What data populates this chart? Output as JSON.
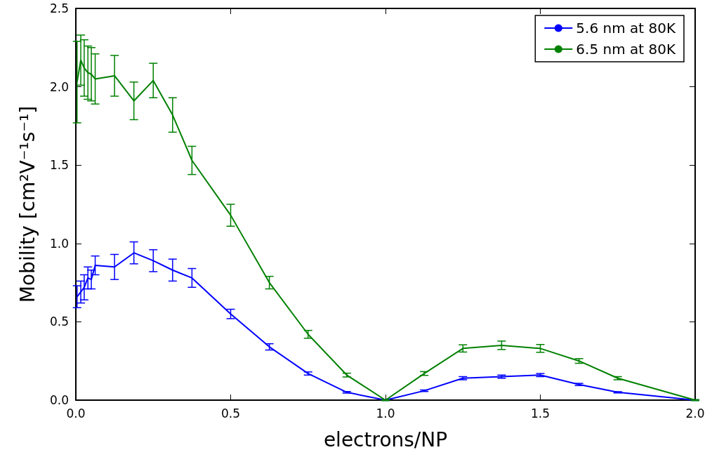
{
  "chart_data": {
    "type": "line",
    "xlabel": "electrons/NP",
    "ylabel": "Mobility [cm²V⁻¹s⁻¹]",
    "xlim": [
      0,
      2
    ],
    "ylim": [
      0,
      2.5
    ],
    "xticks": [
      {
        "value": 0,
        "label": "0.0"
      },
      {
        "value": 0.5,
        "label": "0.5"
      },
      {
        "value": 1,
        "label": "1.0"
      },
      {
        "value": 1.5,
        "label": "1.5"
      },
      {
        "value": 2,
        "label": "2.0"
      }
    ],
    "yticks": [
      {
        "value": 0,
        "label": "0.0"
      },
      {
        "value": 0.5,
        "label": "0.5"
      },
      {
        "value": 1,
        "label": "1.0"
      },
      {
        "value": 1.5,
        "label": "1.5"
      },
      {
        "value": 2,
        "label": "2.0"
      },
      {
        "value": 2.5,
        "label": "2.5"
      }
    ],
    "grid": false,
    "legend": "top right",
    "marker": "none",
    "line_style": "solid",
    "x": [
      0.004,
      0.016,
      0.027,
      0.039,
      0.05,
      0.0625,
      0.125,
      0.1875,
      0.25,
      0.3125,
      0.375,
      0.5,
      0.625,
      0.75,
      0.875,
      1.0,
      1.125,
      1.25,
      1.375,
      1.5,
      1.625,
      1.75,
      2.0
    ],
    "series": [
      {
        "name": "5.6 nm at 80K",
        "color": "#0000ff",
        "values": [
          0.66,
          0.69,
          0.72,
          0.78,
          0.77,
          0.86,
          0.85,
          0.94,
          0.89,
          0.83,
          0.78,
          0.55,
          0.34,
          0.17,
          0.05,
          0.0,
          0.06,
          0.14,
          0.15,
          0.16,
          0.1,
          0.05,
          0.0
        ],
        "errors": [
          0.07,
          0.07,
          0.08,
          0.07,
          0.06,
          0.06,
          0.08,
          0.07,
          0.07,
          0.07,
          0.06,
          0.03,
          0.02,
          0.01,
          0.005,
          0.002,
          0.005,
          0.01,
          0.01,
          0.01,
          0.007,
          0.004,
          0.002
        ]
      },
      {
        "name": "6.5 nm at 80K",
        "color": "#008000",
        "values": [
          2.03,
          2.17,
          2.12,
          2.09,
          2.08,
          2.05,
          2.07,
          1.91,
          2.04,
          1.82,
          1.53,
          1.18,
          0.75,
          0.42,
          0.16,
          0.0,
          0.17,
          0.33,
          0.35,
          0.33,
          0.25,
          0.14,
          0.0
        ],
        "errors": [
          0.26,
          0.16,
          0.18,
          0.17,
          0.17,
          0.16,
          0.13,
          0.12,
          0.11,
          0.11,
          0.09,
          0.07,
          0.04,
          0.025,
          0.012,
          0.003,
          0.012,
          0.023,
          0.027,
          0.025,
          0.015,
          0.01,
          0.003
        ]
      }
    ]
  }
}
